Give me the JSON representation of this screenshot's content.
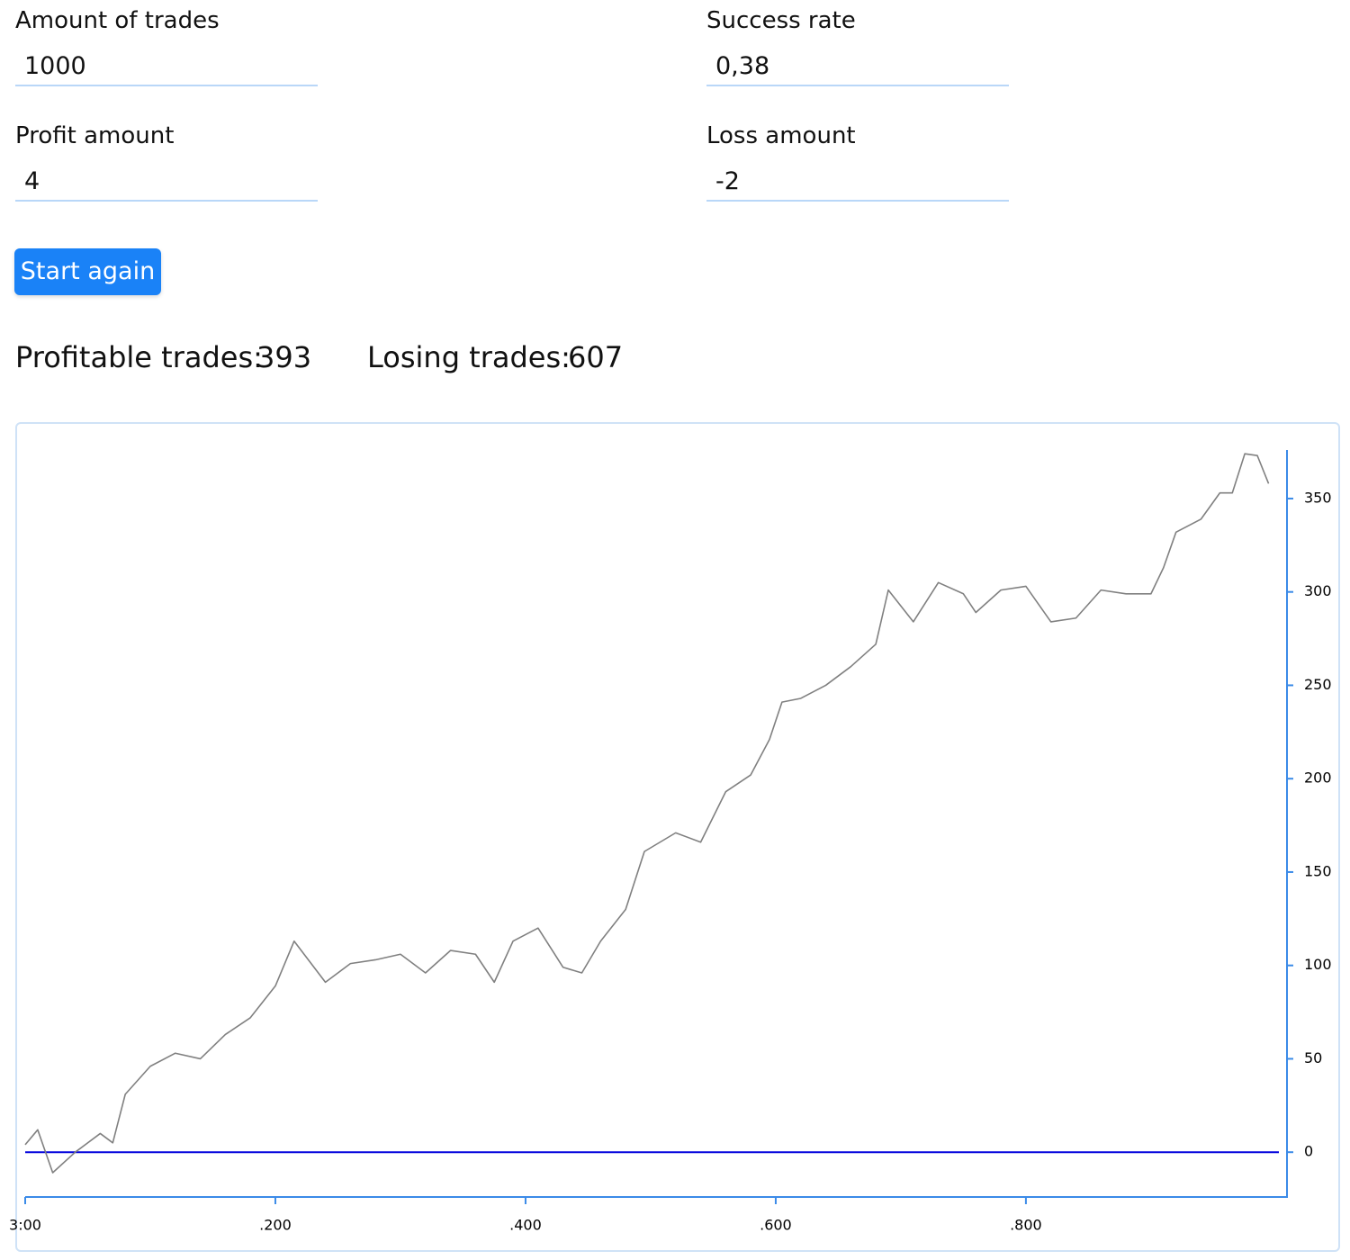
{
  "form": {
    "fields": [
      {
        "label": "Amount of trades",
        "value": "1000"
      },
      {
        "label": "Success rate",
        "value": "0,38"
      },
      {
        "label": "Profit amount",
        "value": "4"
      },
      {
        "label": "Loss amount",
        "value": "-2"
      }
    ],
    "button": "Start again"
  },
  "stats": [
    {
      "label": "Profitable trades:",
      "value": 393
    },
    {
      "label": "Losing trades:",
      "value": 607
    }
  ],
  "chart_data": {
    "type": "line",
    "color": "#808080",
    "axis_color": "#3b8be8",
    "y_axis_side": "right",
    "reference_line": {
      "value": 0,
      "color": "#0000dd"
    },
    "x": [
      0,
      10,
      22,
      40,
      60,
      70,
      80,
      100,
      120,
      140,
      160,
      180,
      200,
      215,
      240,
      260,
      280,
      300,
      320,
      340,
      360,
      375,
      390,
      410,
      430,
      445,
      460,
      480,
      495,
      520,
      540,
      560,
      580,
      595,
      605,
      620,
      640,
      660,
      680,
      690,
      710,
      730,
      750,
      760,
      780,
      800,
      820,
      840,
      860,
      880,
      900,
      910,
      920,
      940,
      955,
      965,
      975,
      985,
      994
    ],
    "values": [
      4,
      12,
      -11,
      0,
      10,
      5,
      31,
      46,
      53,
      50,
      63,
      72,
      89,
      113,
      91,
      101,
      103,
      106,
      96,
      108,
      106,
      91,
      113,
      120,
      99,
      96,
      113,
      130,
      161,
      171,
      166,
      193,
      202,
      221,
      241,
      243,
      250,
      260,
      272,
      301,
      284,
      305,
      299,
      289,
      301,
      303,
      284,
      286,
      301,
      299,
      299,
      313,
      332,
      339,
      353,
      353,
      374,
      373,
      358
    ],
    "xlim": [
      0,
      1008
    ],
    "ylim": [
      -24,
      376
    ],
    "xticks": [
      {
        "value": 0,
        "label": "3:00"
      },
      {
        "value": 200,
        "label": ".200"
      },
      {
        "value": 400,
        "label": ".400"
      },
      {
        "value": 600,
        "label": ".600"
      },
      {
        "value": 800,
        "label": ".800"
      }
    ],
    "yticks": [
      0,
      50,
      100,
      150,
      200,
      250,
      300,
      350
    ]
  }
}
